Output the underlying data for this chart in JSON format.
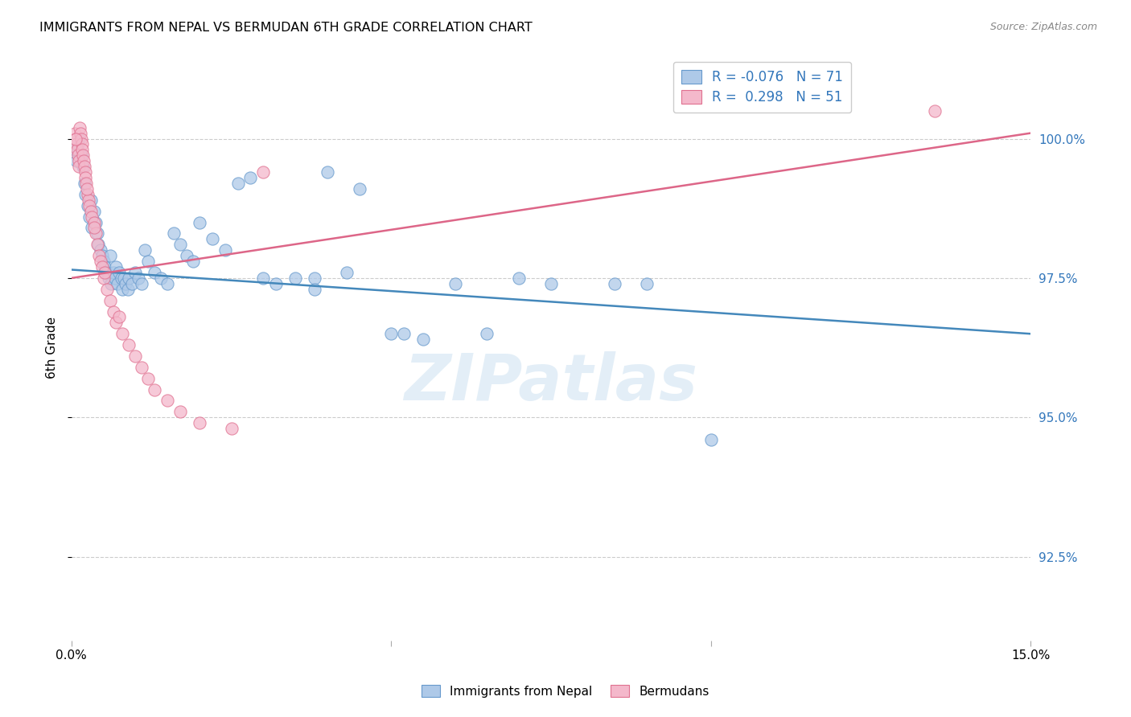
{
  "title": "IMMIGRANTS FROM NEPAL VS BERMUDAN 6TH GRADE CORRELATION CHART",
  "source": "Source: ZipAtlas.com",
  "ylabel": "6th Grade",
  "legend_label1": "Immigrants from Nepal",
  "legend_label2": "Bermudans",
  "r1": "-0.076",
  "n1": "71",
  "r2": "0.298",
  "n2": "51",
  "watermark": "ZIPatlas",
  "blue_color": "#aec9e8",
  "pink_color": "#f4b8cb",
  "blue_edge_color": "#6699cc",
  "pink_edge_color": "#e07090",
  "blue_line_color": "#4488bb",
  "pink_line_color": "#dd6688",
  "tick_color": "#3377bb",
  "xlim": [
    0.0,
    15.0
  ],
  "ylim": [
    91.0,
    101.5
  ],
  "ytick_vals": [
    92.5,
    95.0,
    97.5,
    100.0
  ],
  "blue_scatter": [
    [
      0.05,
      99.8
    ],
    [
      0.08,
      99.6
    ],
    [
      0.1,
      99.9
    ],
    [
      0.12,
      100.0
    ],
    [
      0.15,
      99.7
    ],
    [
      0.18,
      99.5
    ],
    [
      0.2,
      99.2
    ],
    [
      0.22,
      99.0
    ],
    [
      0.25,
      98.8
    ],
    [
      0.28,
      98.6
    ],
    [
      0.3,
      98.9
    ],
    [
      0.32,
      98.4
    ],
    [
      0.35,
      98.7
    ],
    [
      0.38,
      98.5
    ],
    [
      0.4,
      98.3
    ],
    [
      0.42,
      98.1
    ],
    [
      0.45,
      98.0
    ],
    [
      0.48,
      97.9
    ],
    [
      0.5,
      97.8
    ],
    [
      0.52,
      97.7
    ],
    [
      0.55,
      97.6
    ],
    [
      0.58,
      97.5
    ],
    [
      0.6,
      97.9
    ],
    [
      0.62,
      97.4
    ],
    [
      0.65,
      97.6
    ],
    [
      0.68,
      97.5
    ],
    [
      0.7,
      97.7
    ],
    [
      0.72,
      97.4
    ],
    [
      0.75,
      97.6
    ],
    [
      0.78,
      97.5
    ],
    [
      0.8,
      97.3
    ],
    [
      0.82,
      97.5
    ],
    [
      0.85,
      97.4
    ],
    [
      0.88,
      97.3
    ],
    [
      0.9,
      97.5
    ],
    [
      0.95,
      97.4
    ],
    [
      1.0,
      97.6
    ],
    [
      1.05,
      97.5
    ],
    [
      1.1,
      97.4
    ],
    [
      1.15,
      98.0
    ],
    [
      1.2,
      97.8
    ],
    [
      1.3,
      97.6
    ],
    [
      1.4,
      97.5
    ],
    [
      1.5,
      97.4
    ],
    [
      1.6,
      98.3
    ],
    [
      1.7,
      98.1
    ],
    [
      1.8,
      97.9
    ],
    [
      1.9,
      97.8
    ],
    [
      2.0,
      98.5
    ],
    [
      2.2,
      98.2
    ],
    [
      2.4,
      98.0
    ],
    [
      2.6,
      99.2
    ],
    [
      2.8,
      99.3
    ],
    [
      3.0,
      97.5
    ],
    [
      3.2,
      97.4
    ],
    [
      3.5,
      97.5
    ],
    [
      3.8,
      97.5
    ],
    [
      4.0,
      99.4
    ],
    [
      4.3,
      97.6
    ],
    [
      4.5,
      99.1
    ],
    [
      5.0,
      96.5
    ],
    [
      5.5,
      96.4
    ],
    [
      6.0,
      97.4
    ],
    [
      6.5,
      96.5
    ],
    [
      7.0,
      97.5
    ],
    [
      7.5,
      97.4
    ],
    [
      8.5,
      97.4
    ],
    [
      10.0,
      94.6
    ],
    [
      3.8,
      97.3
    ],
    [
      5.2,
      96.5
    ],
    [
      9.0,
      97.4
    ]
  ],
  "pink_scatter": [
    [
      0.05,
      100.1
    ],
    [
      0.07,
      100.0
    ],
    [
      0.08,
      99.9
    ],
    [
      0.09,
      99.8
    ],
    [
      0.1,
      99.7
    ],
    [
      0.11,
      99.6
    ],
    [
      0.12,
      99.5
    ],
    [
      0.13,
      100.2
    ],
    [
      0.14,
      100.1
    ],
    [
      0.15,
      100.0
    ],
    [
      0.16,
      99.9
    ],
    [
      0.17,
      99.8
    ],
    [
      0.18,
      99.7
    ],
    [
      0.19,
      99.6
    ],
    [
      0.2,
      99.5
    ],
    [
      0.21,
      99.4
    ],
    [
      0.22,
      99.3
    ],
    [
      0.23,
      99.2
    ],
    [
      0.25,
      99.0
    ],
    [
      0.27,
      98.9
    ],
    [
      0.28,
      98.8
    ],
    [
      0.3,
      98.7
    ],
    [
      0.32,
      98.6
    ],
    [
      0.35,
      98.5
    ],
    [
      0.38,
      98.3
    ],
    [
      0.4,
      98.1
    ],
    [
      0.43,
      97.9
    ],
    [
      0.45,
      97.8
    ],
    [
      0.48,
      97.7
    ],
    [
      0.5,
      97.5
    ],
    [
      0.55,
      97.3
    ],
    [
      0.6,
      97.1
    ],
    [
      0.65,
      96.9
    ],
    [
      0.7,
      96.7
    ],
    [
      0.8,
      96.5
    ],
    [
      0.9,
      96.3
    ],
    [
      1.0,
      96.1
    ],
    [
      1.1,
      95.9
    ],
    [
      1.2,
      95.7
    ],
    [
      1.3,
      95.5
    ],
    [
      1.5,
      95.3
    ],
    [
      1.7,
      95.1
    ],
    [
      2.0,
      94.9
    ],
    [
      2.5,
      94.8
    ],
    [
      3.0,
      99.4
    ],
    [
      0.06,
      100.0
    ],
    [
      0.24,
      99.1
    ],
    [
      0.36,
      98.4
    ],
    [
      0.52,
      97.6
    ],
    [
      0.75,
      96.8
    ],
    [
      13.5,
      100.5
    ]
  ],
  "blue_trendline": [
    [
      0.0,
      97.65
    ],
    [
      15.0,
      96.5
    ]
  ],
  "pink_trendline": [
    [
      0.0,
      97.5
    ],
    [
      15.0,
      100.1
    ]
  ]
}
